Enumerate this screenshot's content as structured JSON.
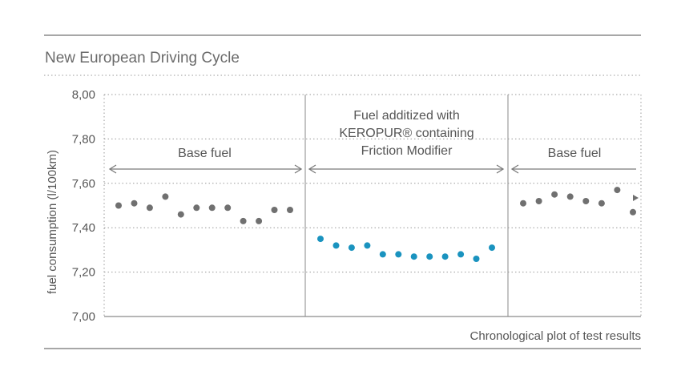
{
  "chart_data": {
    "type": "scatter",
    "title": "New European Driving Cycle",
    "ylabel": "fuel consumption (l/100km)",
    "xlabel": "Chronological plot of test results",
    "ylim": [
      7.0,
      8.0
    ],
    "yticks": [
      "8,00",
      "7,80",
      "7,60",
      "7,40",
      "7,20",
      "7,00"
    ],
    "ytick_values": [
      8.0,
      7.8,
      7.6,
      7.4,
      7.2,
      7.0
    ],
    "grid": true,
    "colors": {
      "base": "#707070",
      "additized": "#1a93bf",
      "axis": "#8a8a8a"
    },
    "segments": [
      {
        "label_lines": [
          "Base fuel"
        ],
        "color": "#555555"
      },
      {
        "label_lines": [
          "Fuel additized with",
          "KEROPUR® containing",
          "Friction Modifier"
        ],
        "color": "#1a93bf"
      },
      {
        "label_lines": [
          "Base fuel"
        ],
        "color": "#555555"
      }
    ],
    "series": [
      {
        "name": "Base fuel",
        "segment": 0,
        "values": [
          7.5,
          7.51,
          7.49,
          7.54,
          7.46,
          7.49,
          7.49,
          7.49,
          7.43,
          7.43,
          7.48,
          7.48
        ]
      },
      {
        "name": "Fuel additized with KEROPUR® containing Friction Modifier",
        "segment": 1,
        "values": [
          7.35,
          7.32,
          7.31,
          7.32,
          7.28,
          7.28,
          7.27,
          7.27,
          7.27,
          7.28,
          7.26,
          7.31
        ]
      },
      {
        "name": "Base fuel",
        "segment": 2,
        "values": [
          7.51,
          7.52,
          7.55,
          7.54,
          7.52,
          7.51,
          7.57,
          7.47
        ]
      }
    ]
  }
}
